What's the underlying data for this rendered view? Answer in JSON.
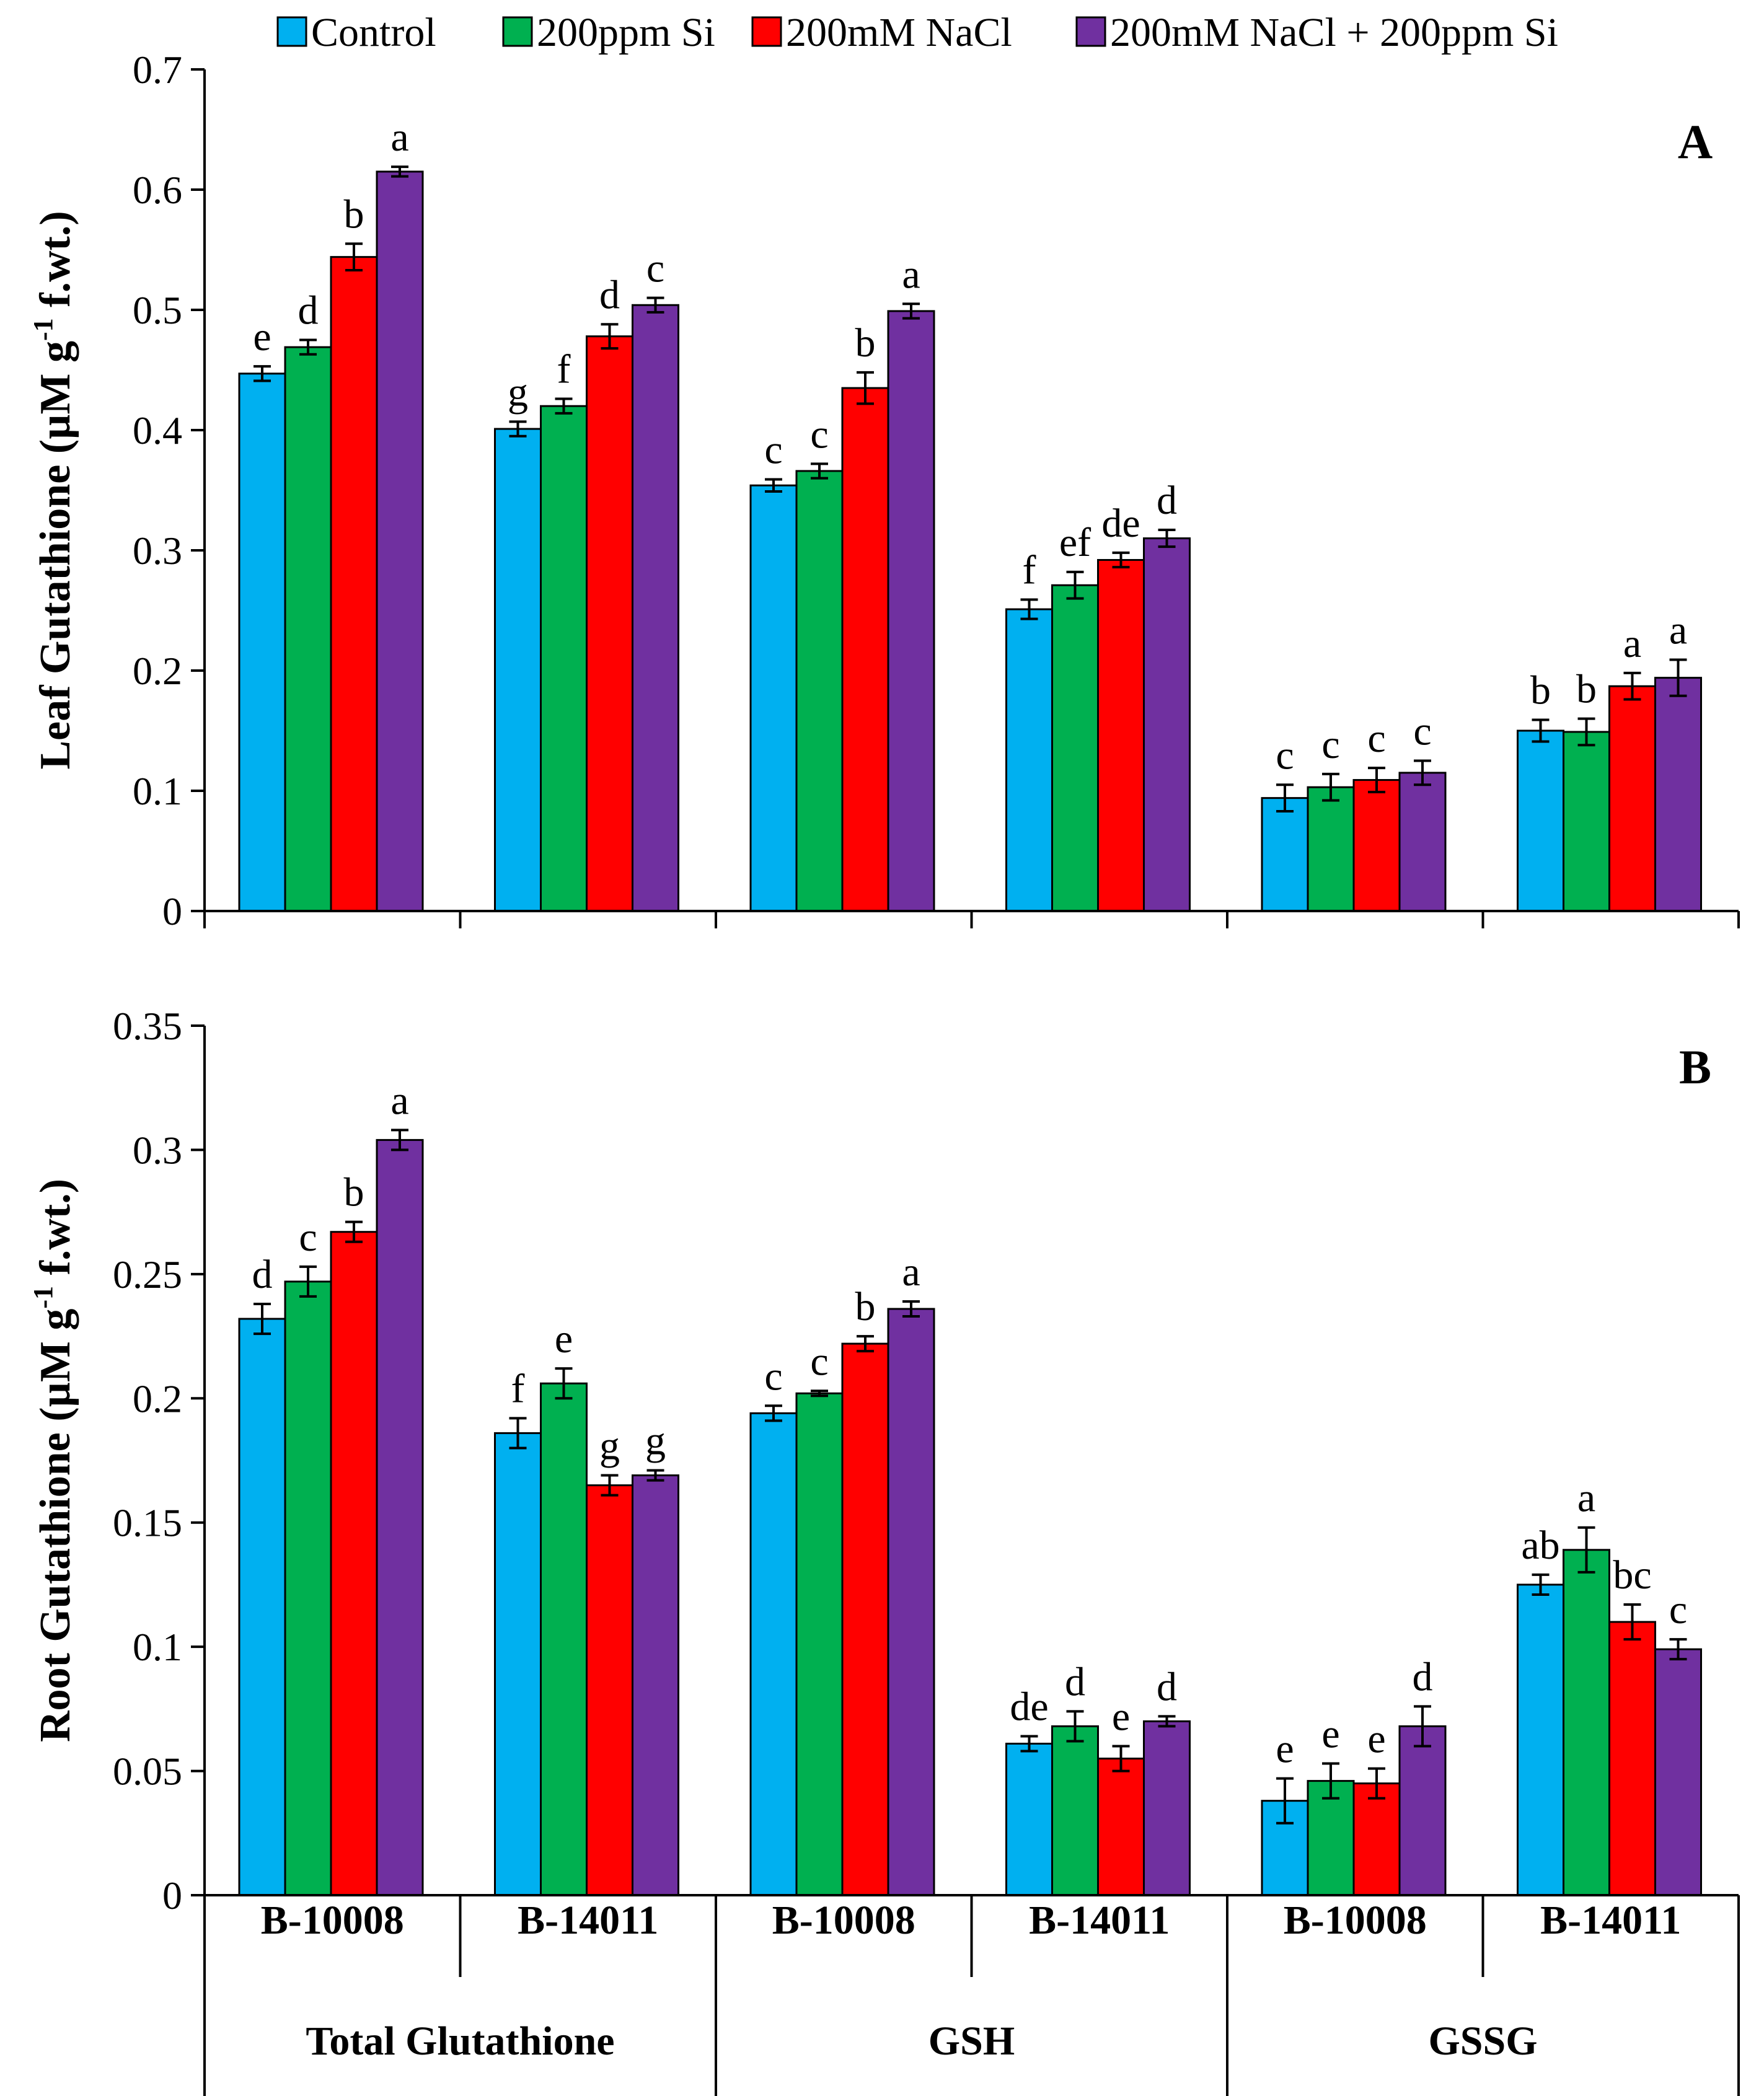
{
  "legend": {
    "items": [
      {
        "label": "Control",
        "color": "#00B0F0"
      },
      {
        "label": "200ppm Si",
        "color": "#00B050"
      },
      {
        "label": "200mM NaCl",
        "color": "#FF0000"
      },
      {
        "label": "200mM NaCl + 200ppm Si",
        "color": "#7030A0"
      }
    ]
  },
  "chart_data": [
    {
      "type": "bar",
      "panel_label": "A",
      "ylabel_main": "Leaf Gutathione (µM g",
      "ylabel_sup": "-1",
      "ylabel_tail": " f.wt.)",
      "ylim": [
        0,
        0.7
      ],
      "yticks": [
        "0",
        "0.1",
        "0.2",
        "0.3",
        "0.4",
        "0.5",
        "0.6",
        "0.7"
      ],
      "categories": [
        "Total Glutathione B-10008",
        "Total Glutathione B-14011",
        "GSH B-10008",
        "GSH B-14011",
        "GSSG B-10008",
        "GSSG B-14011"
      ],
      "series": [
        {
          "name": "Control",
          "values": [
            0.447,
            0.401,
            0.354,
            0.251,
            0.094,
            0.15
          ],
          "errors": [
            0.006,
            0.006,
            0.005,
            0.008,
            0.011,
            0.009
          ]
        },
        {
          "name": "200ppm Si",
          "values": [
            0.469,
            0.42,
            0.366,
            0.271,
            0.103,
            0.149
          ],
          "errors": [
            0.006,
            0.006,
            0.006,
            0.011,
            0.011,
            0.011
          ]
        },
        {
          "name": "200mM NaCl",
          "values": [
            0.544,
            0.478,
            0.435,
            0.292,
            0.109,
            0.187
          ],
          "errors": [
            0.011,
            0.01,
            0.013,
            0.006,
            0.01,
            0.011
          ]
        },
        {
          "name": "200mM NaCl + 200ppm Si",
          "values": [
            0.615,
            0.504,
            0.499,
            0.31,
            0.115,
            0.194
          ],
          "errors": [
            0.004,
            0.006,
            0.006,
            0.007,
            0.01,
            0.015
          ]
        }
      ],
      "significance": [
        [
          "e",
          "d",
          "b",
          "a"
        ],
        [
          "g",
          "f",
          "d",
          "c"
        ],
        [
          "c",
          "c",
          "b",
          "a"
        ],
        [
          "f",
          "ef",
          "de",
          "d"
        ],
        [
          "c",
          "c",
          "c",
          "c"
        ],
        [
          "b",
          "b",
          "a",
          "a"
        ]
      ]
    },
    {
      "type": "bar",
      "panel_label": "B",
      "ylabel_main": "Root Gutathione (µM g",
      "ylabel_sup": "-1",
      "ylabel_tail": " f.wt.)",
      "ylim": [
        0,
        0.35
      ],
      "yticks": [
        "0",
        "0.05",
        "0.1",
        "0.15",
        "0.2",
        "0.25",
        "0.3",
        "0.35"
      ],
      "categories": [
        "Total Glutathione B-10008",
        "Total Glutathione B-14011",
        "GSH B-10008",
        "GSH B-14011",
        "GSSG B-10008",
        "GSSG B-14011"
      ],
      "series": [
        {
          "name": "Control",
          "values": [
            0.232,
            0.186,
            0.194,
            0.061,
            0.038,
            0.125
          ],
          "errors": [
            0.006,
            0.006,
            0.003,
            0.003,
            0.009,
            0.004
          ]
        },
        {
          "name": "200ppm Si",
          "values": [
            0.247,
            0.206,
            0.202,
            0.068,
            0.046,
            0.139
          ],
          "errors": [
            0.006,
            0.006,
            0.001,
            0.006,
            0.007,
            0.009
          ]
        },
        {
          "name": "200mM NaCl",
          "values": [
            0.267,
            0.165,
            0.222,
            0.055,
            0.045,
            0.11
          ],
          "errors": [
            0.004,
            0.004,
            0.003,
            0.005,
            0.006,
            0.007
          ]
        },
        {
          "name": "200mM NaCl + 200ppm Si",
          "values": [
            0.304,
            0.169,
            0.236,
            0.07,
            0.068,
            0.099
          ],
          "errors": [
            0.004,
            0.002,
            0.003,
            0.002,
            0.008,
            0.004
          ]
        }
      ],
      "significance": [
        [
          "d",
          "c",
          "b",
          "a"
        ],
        [
          "f",
          "e",
          "g",
          "g"
        ],
        [
          "c",
          "c",
          "b",
          "a"
        ],
        [
          "de",
          "d",
          "e",
          "d"
        ],
        [
          "e",
          "e",
          "e",
          "d"
        ],
        [
          "ab",
          "a",
          "bc",
          "c"
        ]
      ]
    }
  ],
  "x_axis": {
    "cultivars": [
      "B-10008",
      "B-14011",
      "B-10008",
      "B-14011",
      "B-10008",
      "B-14011"
    ],
    "groups": [
      "Total Glutathione",
      "GSH",
      "GSSG"
    ]
  }
}
